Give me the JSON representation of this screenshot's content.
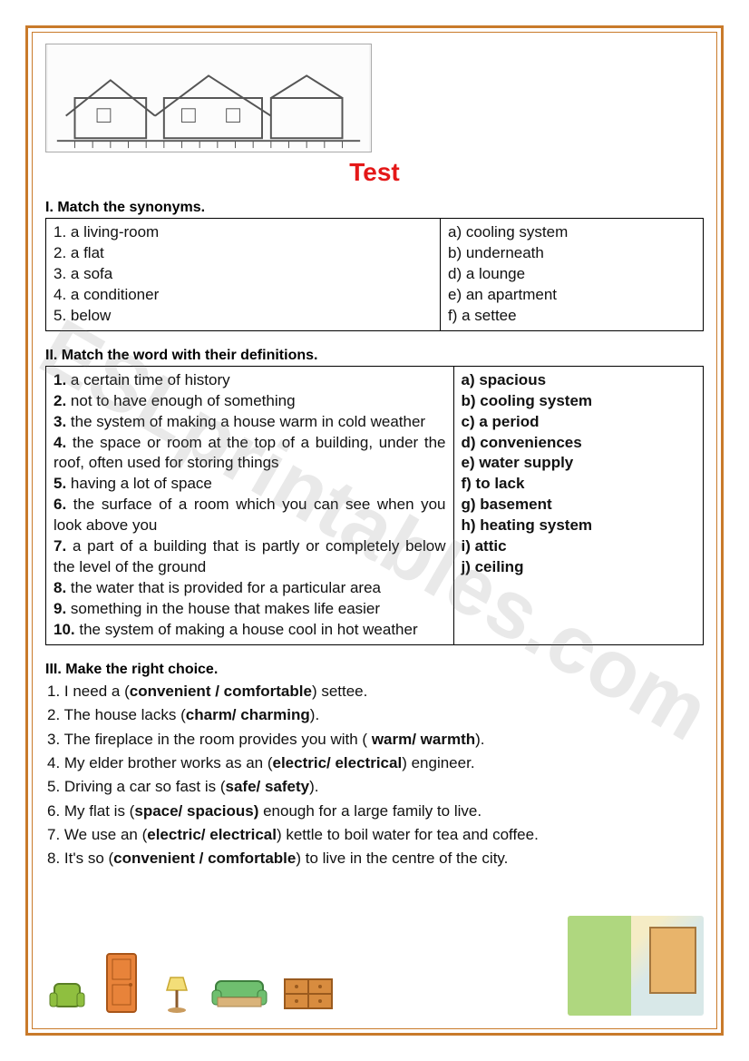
{
  "colors": {
    "frame": "#c97a2a",
    "title": "#e41818",
    "text": "#111111",
    "watermark": "rgba(120,120,120,0.16)"
  },
  "watermark": "ESLprintables.com",
  "title": "Test",
  "section1": {
    "heading_num": "I.",
    "heading_txt": "Match the synonyms.",
    "left": [
      "1. a living-room",
      "2. a flat",
      "3. a sofa",
      "4. a conditioner",
      "5. below"
    ],
    "right": [
      "a) cooling system",
      "b) underneath",
      "d) a lounge",
      "e) an apartment",
      "f) a settee"
    ]
  },
  "section2": {
    "heading_num": "II.",
    "heading_txt": "Match the word with their definitions.",
    "defs": [
      {
        "n": "1.",
        "t": "a certain time of history"
      },
      {
        "n": "2.",
        "t": "not to have enough of something"
      },
      {
        "n": "3.",
        "t": "the system of making a house warm in cold weather"
      },
      {
        "n": "4.",
        "t": "the space or room at the top of a building, under the roof, often used for storing things"
      },
      {
        "n": "5.",
        "t": "having a lot of space"
      },
      {
        "n": "6.",
        "t": "the surface of a room which you can see when you look above you"
      },
      {
        "n": "7.",
        "t": "a part of a building that is partly or completely below the level of the ground"
      },
      {
        "n": "8.",
        "t": "the water that is provided for a particular area"
      },
      {
        "n": "9.",
        "t": "something in the house that makes life easier"
      },
      {
        "n": "10.",
        "t": "the system of making a house cool in hot weather"
      }
    ],
    "answers": [
      "a) spacious",
      "b) cooling system",
      "c) a period",
      "d) conveniences",
      "e) water supply",
      "f)  to lack",
      "g) basement",
      "h) heating system",
      "i)  attic",
      "j) ceiling"
    ]
  },
  "section3": {
    "heading_num": "III.",
    "heading_txt": "Make the right choice.",
    "items": [
      {
        "n": "1.",
        "pre": "  I need a (",
        "b": "convenient / comfortable",
        "post": ") settee."
      },
      {
        "n": "2.",
        "pre": " The house lacks (",
        "b": "charm/ charming",
        "post": ")."
      },
      {
        "n": "3.",
        "pre": "  The fireplace in the room provides you with ( ",
        "b": "warm/ warmth",
        "post": ")."
      },
      {
        "n": "4.",
        "pre": "  My elder brother works as an (",
        "b": "electric/ electrical",
        "post": ") engineer."
      },
      {
        "n": "5.",
        "pre": "  Driving a car so fast is (",
        "b": "safe/ safety",
        "post": ")."
      },
      {
        "n": "6.",
        "pre": "  My flat is (",
        "b": "space/ spacious)",
        "post": " enough for a large family to live."
      },
      {
        "n": "7.",
        "pre": " We use an (",
        "b": "electric/ electrical",
        "post": ") kettle to boil water for tea and coffee."
      },
      {
        "n": "8.",
        "pre": " It's so (",
        "b": "convenient / comfortable",
        "post": ") to live in the centre of the city."
      }
    ]
  }
}
